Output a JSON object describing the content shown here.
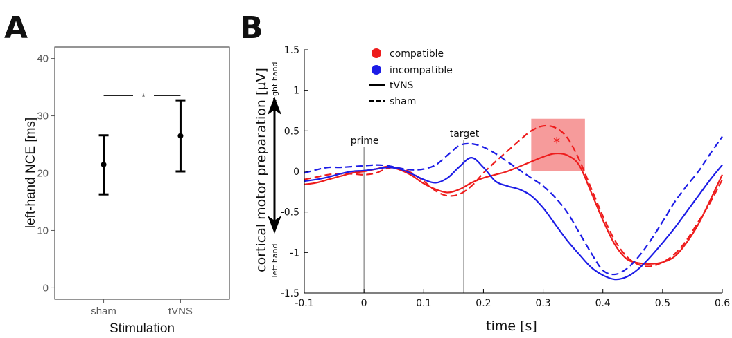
{
  "panels": {
    "a_letter": "A",
    "b_letter": "B"
  },
  "chart_data": [
    {
      "type": "errorbar",
      "panel": "A",
      "categories": [
        "sham",
        "tVNS"
      ],
      "values": [
        21.5,
        26.5
      ],
      "lower": [
        16.3,
        20.3
      ],
      "upper": [
        26.6,
        32.7
      ],
      "xlabel": "Stimulation",
      "ylabel": "left-hand NCE [ms]",
      "ylim": [
        -2,
        42
      ],
      "yticks": [
        "0",
        "10",
        "20",
        "30",
        "40"
      ],
      "significance": {
        "label": "*",
        "y": 33.5
      },
      "grid": false
    },
    {
      "type": "line",
      "panel": "B",
      "xlabel": "time [s]",
      "ylabel": "cortical motor preparation [µV]",
      "ylabel_top": "right hand",
      "ylabel_bottom": "left hand",
      "xlim": [
        -0.1,
        0.6
      ],
      "ylim": [
        -1.5,
        1.5
      ],
      "xticks": [
        "-0.1",
        "0",
        "0.1",
        "0.2",
        "0.3",
        "0.4",
        "0.5",
        "0.6"
      ],
      "yticks": [
        "-1.5",
        "-1",
        "-0.5",
        "0",
        "0.5",
        "1",
        "1.5"
      ],
      "legend": {
        "placement": "top-left",
        "entries": [
          "compatible",
          "incompatible",
          "tVNS",
          "sham"
        ]
      },
      "colors": {
        "compatible": "#ee1c1c",
        "incompatible": "#1c1ce6",
        "highlight": "#f48a8a"
      },
      "annotations": [
        {
          "label": "prime",
          "x": 0.0
        },
        {
          "label": "target",
          "x": 0.167
        }
      ],
      "highlight": {
        "x": [
          0.28,
          0.37
        ],
        "y": [
          0,
          0.65
        ],
        "label": "*"
      },
      "series": [
        {
          "condition": "compatible",
          "stimulation": "tVNS",
          "x": [
            -0.1,
            -0.08,
            -0.06,
            -0.04,
            -0.02,
            0,
            0.02,
            0.04,
            0.06,
            0.08,
            0.1,
            0.12,
            0.14,
            0.16,
            0.18,
            0.2,
            0.22,
            0.24,
            0.26,
            0.28,
            0.3,
            0.32,
            0.34,
            0.36,
            0.38,
            0.4,
            0.42,
            0.44,
            0.46,
            0.48,
            0.5,
            0.52,
            0.54,
            0.56,
            0.58,
            0.6
          ],
          "y": [
            -0.16,
            -0.14,
            -0.1,
            -0.06,
            -0.02,
            0.0,
            0.03,
            0.06,
            0.02,
            -0.05,
            -0.15,
            -0.22,
            -0.26,
            -0.22,
            -0.14,
            -0.08,
            -0.04,
            0.0,
            0.06,
            0.12,
            0.18,
            0.22,
            0.2,
            0.08,
            -0.25,
            -0.6,
            -0.9,
            -1.08,
            -1.13,
            -1.14,
            -1.12,
            -1.05,
            -0.88,
            -0.65,
            -0.35,
            -0.04
          ]
        },
        {
          "condition": "compatible",
          "stimulation": "sham",
          "x": [
            -0.1,
            -0.08,
            -0.06,
            -0.04,
            -0.02,
            0,
            0.02,
            0.04,
            0.06,
            0.08,
            0.1,
            0.12,
            0.14,
            0.16,
            0.18,
            0.2,
            0.22,
            0.24,
            0.26,
            0.28,
            0.3,
            0.32,
            0.34,
            0.36,
            0.38,
            0.4,
            0.42,
            0.44,
            0.46,
            0.48,
            0.5,
            0.52,
            0.54,
            0.56,
            0.58,
            0.6
          ],
          "y": [
            -0.1,
            -0.07,
            -0.04,
            -0.03,
            -0.03,
            -0.04,
            -0.02,
            0.04,
            0.04,
            -0.02,
            -0.12,
            -0.24,
            -0.3,
            -0.28,
            -0.18,
            -0.02,
            0.12,
            0.25,
            0.38,
            0.5,
            0.56,
            0.54,
            0.42,
            0.15,
            -0.2,
            -0.55,
            -0.85,
            -1.05,
            -1.15,
            -1.17,
            -1.12,
            -1.02,
            -0.85,
            -0.62,
            -0.38,
            -0.1
          ]
        },
        {
          "condition": "incompatible",
          "stimulation": "tVNS",
          "x": [
            -0.1,
            -0.08,
            -0.06,
            -0.04,
            -0.02,
            0,
            0.02,
            0.04,
            0.06,
            0.08,
            0.1,
            0.12,
            0.14,
            0.16,
            0.18,
            0.2,
            0.22,
            0.24,
            0.26,
            0.28,
            0.3,
            0.32,
            0.34,
            0.36,
            0.38,
            0.4,
            0.42,
            0.44,
            0.46,
            0.48,
            0.5,
            0.52,
            0.54,
            0.56,
            0.58,
            0.6
          ],
          "y": [
            -0.12,
            -0.1,
            -0.07,
            -0.03,
            0.0,
            0.01,
            0.03,
            0.05,
            0.03,
            -0.03,
            -0.1,
            -0.14,
            -0.08,
            0.06,
            0.17,
            0.05,
            -0.12,
            -0.18,
            -0.22,
            -0.3,
            -0.45,
            -0.65,
            -0.85,
            -1.02,
            -1.18,
            -1.28,
            -1.33,
            -1.3,
            -1.2,
            -1.05,
            -0.88,
            -0.7,
            -0.5,
            -0.3,
            -0.1,
            0.08
          ]
        },
        {
          "condition": "incompatible",
          "stimulation": "sham",
          "x": [
            -0.1,
            -0.08,
            -0.06,
            -0.04,
            -0.02,
            0,
            0.02,
            0.04,
            0.06,
            0.08,
            0.1,
            0.12,
            0.14,
            0.16,
            0.18,
            0.2,
            0.22,
            0.24,
            0.26,
            0.28,
            0.3,
            0.32,
            0.34,
            0.36,
            0.38,
            0.4,
            0.42,
            0.44,
            0.46,
            0.48,
            0.5,
            0.52,
            0.54,
            0.56,
            0.58,
            0.6
          ],
          "y": [
            -0.02,
            0.02,
            0.05,
            0.05,
            0.06,
            0.07,
            0.08,
            0.07,
            0.04,
            0.02,
            0.03,
            0.08,
            0.2,
            0.32,
            0.34,
            0.3,
            0.22,
            0.12,
            0.02,
            -0.08,
            -0.18,
            -0.32,
            -0.5,
            -0.75,
            -1.0,
            -1.22,
            -1.27,
            -1.2,
            -1.05,
            -0.85,
            -0.62,
            -0.38,
            -0.18,
            0.0,
            0.22,
            0.43
          ]
        }
      ]
    }
  ]
}
